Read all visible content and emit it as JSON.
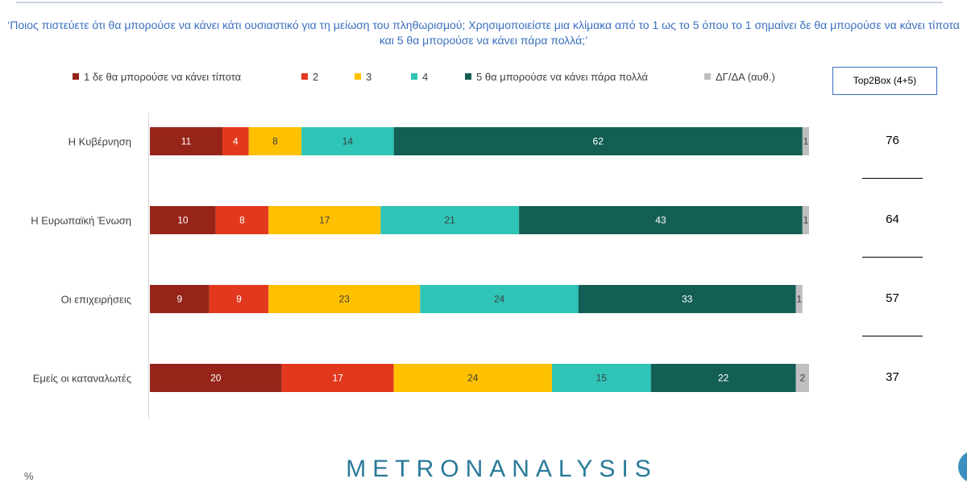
{
  "question": "‘Ποιος πιστεύετε ότι θα μπορούσε να κάνει κάτι ουσιαστικό για τη μείωση του πληθωρισμού; Χρησιμοποιείστε μια κλίμακα από το 1 ως το 5 όπου το 1 σημαίνει δε θα μπορούσε να κάνει τίποτα και 5 θα μπορούσε να κάνει πάρα πολλά;’",
  "top2box_header": "Top2Box (4+5)",
  "percent_mark": "%",
  "brand": "METRONANALYSIS",
  "chart_data": {
    "type": "bar",
    "orientation": "horizontal",
    "stacked": true,
    "categories": [
      "Η Κυβέρνηση",
      "Η Ευρωπαϊκή Ένωση",
      "Οι επιχειρήσεις",
      "Εμείς οι καταναλωτές"
    ],
    "series": [
      {
        "name": "1  δε θα μπορούσε να κάνει τίποτα",
        "color": "#962419",
        "values": [
          11,
          10,
          9,
          20
        ]
      },
      {
        "name": "2",
        "color": "#e2381d",
        "values": [
          4,
          8,
          9,
          17
        ]
      },
      {
        "name": "3",
        "color": "#ffc000",
        "values": [
          8,
          17,
          23,
          24
        ]
      },
      {
        "name": "4",
        "color": "#2ec4b6",
        "values": [
          14,
          21,
          24,
          15
        ]
      },
      {
        "name": "5 θα μπορούσε να κάνει πάρα πολλά",
        "color": "#145f55",
        "values": [
          62,
          43,
          33,
          22
        ]
      },
      {
        "name": "ΔΓ/ΔΑ (αυθ.)",
        "color": "#bfbfbf",
        "values": [
          1,
          1,
          1,
          2
        ]
      }
    ],
    "top2box": [
      76,
      64,
      57,
      37
    ],
    "legend_position": "top",
    "grid": false
  }
}
